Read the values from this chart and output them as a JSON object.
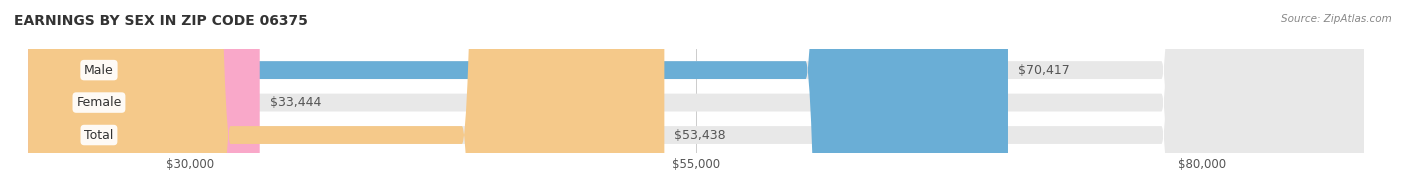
{
  "title": "EARNINGS BY SEX IN ZIP CODE 06375",
  "source": "Source: ZipAtlas.com",
  "categories": [
    "Male",
    "Female",
    "Total"
  ],
  "values": [
    70417,
    33444,
    53438
  ],
  "bar_colors": [
    "#6aaed6",
    "#f9a8c9",
    "#f5c98a"
  ],
  "bar_bg_color": "#e8e8e8",
  "value_labels": [
    "$70,417",
    "$33,444",
    "$53,438"
  ],
  "x_ticks": [
    30000,
    55000,
    80000
  ],
  "x_tick_labels": [
    "$30,000",
    "$55,000",
    "$80,000"
  ],
  "x_min": 22000,
  "x_max": 88000,
  "figsize": [
    14.06,
    1.96
  ],
  "dpi": 100,
  "title_fontsize": 10,
  "bar_label_fontsize": 9,
  "tick_fontsize": 8.5
}
